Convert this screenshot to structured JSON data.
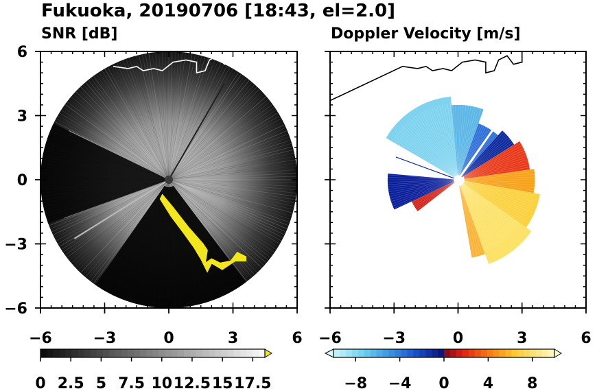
{
  "figure_title": "Fukuoka, 20190706 [18:43, el=2.0]",
  "chart_data": [
    {
      "type": "heatmap",
      "title": "SNR [dB]",
      "xlim": [
        -6,
        6
      ],
      "ylim": [
        -6,
        6
      ],
      "xticks": [
        "−6",
        "−3",
        "0",
        "3",
        "6"
      ],
      "yticks": [
        "6",
        "3",
        "0",
        "−3",
        "−6"
      ],
      "max_range": 6,
      "grid": false,
      "colorbar": {
        "min": 0,
        "max": 18.5,
        "ticks": [
          "0",
          "2.5",
          "5",
          "7.5",
          "10",
          "12.5",
          "15",
          "17.5"
        ],
        "tick_values": [
          0,
          2.5,
          5,
          7.5,
          10,
          12.5,
          15,
          17.5
        ],
        "extend": "max",
        "colormap": "black-to-white, yellow over",
        "over_color": "#f4e61c"
      }
    },
    {
      "type": "heatmap",
      "title": "Doppler Velocity [m/s]",
      "xlim": [
        -6,
        6
      ],
      "ylim": [
        -6,
        6
      ],
      "xticks": [
        "−6",
        "−3",
        "0",
        "3",
        "6"
      ],
      "yticks": [],
      "max_range": 6,
      "grid": false,
      "colorbar": {
        "min": -10,
        "max": 10,
        "ticks": [
          "−8",
          "−4",
          "0",
          "4",
          "8"
        ],
        "tick_values": [
          -8,
          -4,
          0,
          4,
          8
        ],
        "extend": "both",
        "colormap": "light cyan - blue - navy | dark red - red - orange - yellow - pale yellow"
      }
    }
  ],
  "colors": {
    "coastline_snr": "#ffffff",
    "coastline_vel": "#000000",
    "snr_over": "#f4e61c",
    "axes": "#000000"
  }
}
